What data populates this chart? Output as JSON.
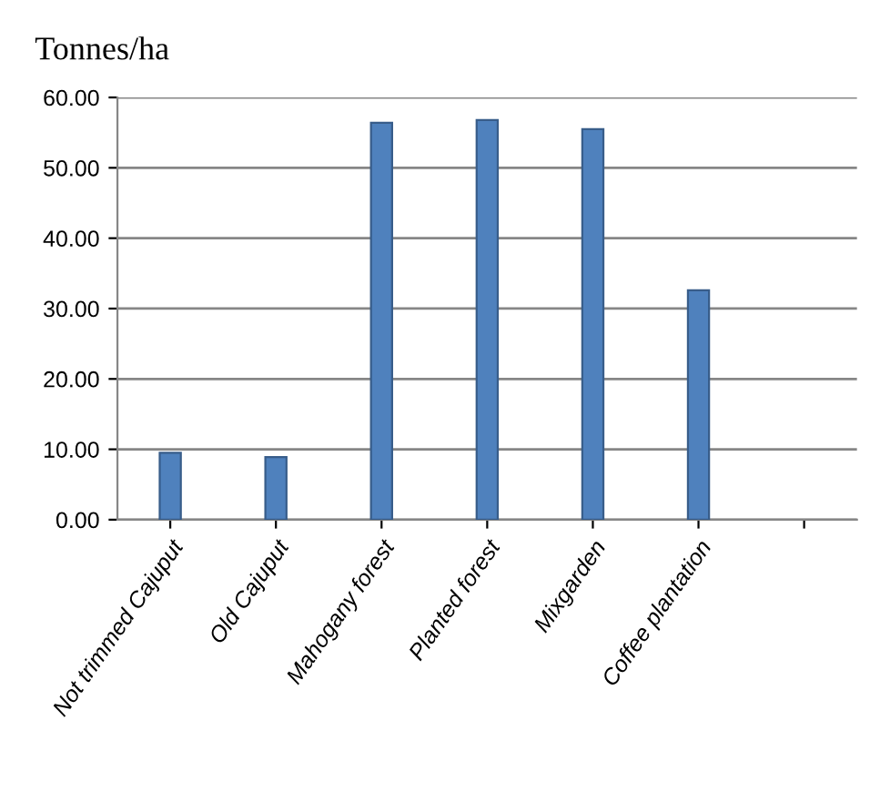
{
  "chart_data": {
    "type": "bar",
    "ylabel": "Tonnes/ha",
    "categories": [
      "Not trimmed Cajuput",
      "Old Cajuput",
      "Mahogany forest",
      "Planted forest",
      "Mixgarden",
      "Coffee plantation",
      null
    ],
    "values": [
      9.5,
      8.9,
      56.4,
      56.8,
      55.5,
      32.6,
      null
    ],
    "color": "#4f81bd",
    "ylim": [
      0,
      60
    ],
    "yticks": [
      {
        "value": 0,
        "label": "0.00"
      },
      {
        "value": 10,
        "label": "10.00"
      },
      {
        "value": 20,
        "label": "20.00"
      },
      {
        "value": 30,
        "label": "30.00"
      },
      {
        "value": 40,
        "label": "40.00"
      },
      {
        "value": 50,
        "label": "50.00"
      },
      {
        "value": 60,
        "label": "60.00"
      }
    ],
    "grid": "y",
    "legend": false
  }
}
